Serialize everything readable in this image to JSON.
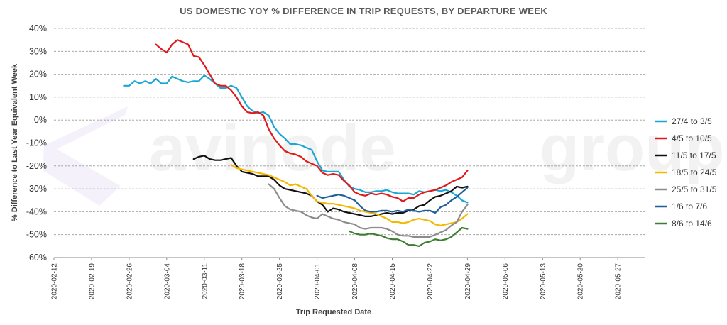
{
  "chart_data": {
    "type": "line",
    "title": "US DOMESTIC YOY % DIFFERENCE IN TRIP REQUESTS, BY DEPARTURE WEEK",
    "xlabel": "Trip Requested Date",
    "ylabel": "% Difference to Last Year Equivalent Week",
    "y_ticks": [
      "40%",
      "30%",
      "20%",
      "10%",
      "0%",
      "-10%",
      "-20%",
      "-30%",
      "-40%",
      "-50%",
      "-60%"
    ],
    "ylim": [
      -60,
      40
    ],
    "x_ticks": [
      "2020-02-12",
      "2020-02-19",
      "2020-02-26",
      "2020-03-04",
      "2020-03-11",
      "2020-03-18",
      "2020-03-25",
      "2020-04-01",
      "2020-04-08",
      "2020-04-15",
      "2020-04-22",
      "2020-04-29",
      "2020-05-06",
      "2020-05-13",
      "2020-05-20",
      "2020-05-27"
    ],
    "xlim": [
      "2020-02-12",
      "2020-06-01"
    ],
    "grid": "horizontal dashed",
    "legend_position": "right",
    "series": [
      {
        "name": "27/4 to 3/5",
        "color": "#1aa7d6",
        "x": [
          "2020-02-25",
          "2020-02-26",
          "2020-02-27",
          "2020-02-28",
          "2020-02-29",
          "2020-03-01",
          "2020-03-02",
          "2020-03-03",
          "2020-03-04",
          "2020-03-05",
          "2020-03-06",
          "2020-03-07",
          "2020-03-08",
          "2020-03-09",
          "2020-03-10",
          "2020-03-11",
          "2020-03-12",
          "2020-03-13",
          "2020-03-14",
          "2020-03-15",
          "2020-03-16",
          "2020-03-17",
          "2020-03-18",
          "2020-03-19",
          "2020-03-20",
          "2020-03-21",
          "2020-03-22",
          "2020-03-23",
          "2020-03-24",
          "2020-03-25",
          "2020-03-26",
          "2020-03-27",
          "2020-03-28",
          "2020-03-29",
          "2020-03-30",
          "2020-03-31",
          "2020-04-01",
          "2020-04-02",
          "2020-04-03",
          "2020-04-04",
          "2020-04-05",
          "2020-04-06",
          "2020-04-07",
          "2020-04-08",
          "2020-04-09",
          "2020-04-10",
          "2020-04-11",
          "2020-04-12",
          "2020-04-13",
          "2020-04-14",
          "2020-04-15",
          "2020-04-16",
          "2020-04-17",
          "2020-04-18",
          "2020-04-19",
          "2020-04-20",
          "2020-04-21",
          "2020-04-22",
          "2020-04-23",
          "2020-04-24",
          "2020-04-25",
          "2020-04-26",
          "2020-04-27",
          "2020-04-28",
          "2020-04-29"
        ],
        "y": [
          15,
          15,
          17,
          16,
          17,
          16,
          18,
          16,
          16,
          19,
          18,
          17,
          16.5,
          17,
          17,
          19.5,
          18,
          16,
          14,
          14,
          15,
          14,
          10,
          6,
          4,
          3,
          3.5,
          2,
          -3,
          -6,
          -8,
          -10.5,
          -10.5,
          -11,
          -12,
          -13,
          -18,
          -22,
          -22.5,
          -22.5,
          -22.5,
          -26,
          -29,
          -30,
          -30.5,
          -31.5,
          -31.5,
          -31,
          -31,
          -30.5,
          -31.5,
          -32,
          -32,
          -32,
          -32.5,
          -31,
          -31.5,
          -31,
          -30.5,
          -31,
          -30.5,
          -31.5,
          -33,
          -35,
          -36
        ]
      },
      {
        "name": "4/5 to 10/5",
        "color": "#e0191a",
        "x": [
          "2020-03-02",
          "2020-03-03",
          "2020-03-04",
          "2020-03-05",
          "2020-03-06",
          "2020-03-07",
          "2020-03-08",
          "2020-03-09",
          "2020-03-10",
          "2020-03-11",
          "2020-03-12",
          "2020-03-13",
          "2020-03-14",
          "2020-03-15",
          "2020-03-16",
          "2020-03-17",
          "2020-03-18",
          "2020-03-19",
          "2020-03-20",
          "2020-03-21",
          "2020-03-22",
          "2020-03-23",
          "2020-03-24",
          "2020-03-25",
          "2020-03-26",
          "2020-03-27",
          "2020-03-28",
          "2020-03-29",
          "2020-03-30",
          "2020-03-31",
          "2020-04-01",
          "2020-04-02",
          "2020-04-03",
          "2020-04-04",
          "2020-04-05",
          "2020-04-06",
          "2020-04-07",
          "2020-04-08",
          "2020-04-09",
          "2020-04-10",
          "2020-04-11",
          "2020-04-12",
          "2020-04-13",
          "2020-04-14",
          "2020-04-15",
          "2020-04-16",
          "2020-04-17",
          "2020-04-18",
          "2020-04-19",
          "2020-04-20",
          "2020-04-21",
          "2020-04-22",
          "2020-04-23",
          "2020-04-24",
          "2020-04-25",
          "2020-04-26",
          "2020-04-27",
          "2020-04-28",
          "2020-04-29"
        ],
        "y": [
          33,
          31,
          29.5,
          33,
          35,
          34,
          33,
          28,
          27.5,
          24,
          20,
          16,
          15,
          15,
          13,
          10,
          6,
          3.5,
          3,
          3.5,
          2,
          -4,
          -8,
          -11,
          -13.5,
          -14.5,
          -15,
          -16,
          -18,
          -19,
          -20,
          -23,
          -24,
          -23.5,
          -24,
          -26.5,
          -28.5,
          -31.5,
          -32.5,
          -33,
          -32,
          -32.5,
          -32,
          -32.5,
          -33.5,
          -34,
          -35.5,
          -34,
          -34,
          -32.5,
          -31.5,
          -31,
          -30.5,
          -29.5,
          -28.5,
          -27,
          -26,
          -25,
          -22
        ]
      },
      {
        "name": "11/5 to 17/5",
        "color": "#111111",
        "x": [
          "2020-03-09",
          "2020-03-10",
          "2020-03-11",
          "2020-03-12",
          "2020-03-13",
          "2020-03-14",
          "2020-03-15",
          "2020-03-16",
          "2020-03-17",
          "2020-03-18",
          "2020-03-19",
          "2020-03-20",
          "2020-03-21",
          "2020-03-22",
          "2020-03-23",
          "2020-03-24",
          "2020-03-25",
          "2020-03-26",
          "2020-03-27",
          "2020-03-28",
          "2020-03-29",
          "2020-03-30",
          "2020-03-31",
          "2020-04-01",
          "2020-04-02",
          "2020-04-03",
          "2020-04-04",
          "2020-04-05",
          "2020-04-06",
          "2020-04-07",
          "2020-04-08",
          "2020-04-09",
          "2020-04-10",
          "2020-04-11",
          "2020-04-12",
          "2020-04-13",
          "2020-04-14",
          "2020-04-15",
          "2020-04-16",
          "2020-04-17",
          "2020-04-18",
          "2020-04-19",
          "2020-04-20",
          "2020-04-21",
          "2020-04-22",
          "2020-04-23",
          "2020-04-24",
          "2020-04-25",
          "2020-04-26",
          "2020-04-27",
          "2020-04-28",
          "2020-04-29"
        ],
        "y": [
          -17,
          -16,
          -15.5,
          -17,
          -17.5,
          -17.5,
          -17,
          -16.5,
          -20,
          -22.5,
          -23,
          -23.5,
          -24.5,
          -24.5,
          -24.5,
          -26,
          -28.5,
          -30,
          -30.5,
          -31,
          -31.5,
          -32,
          -33,
          -35.5,
          -37,
          -40,
          -38.5,
          -39,
          -40,
          -40.5,
          -41,
          -41.5,
          -42,
          -42,
          -41.5,
          -41,
          -40.5,
          -41,
          -40.5,
          -40.5,
          -39.5,
          -39,
          -37.5,
          -37,
          -35,
          -33.5,
          -33,
          -32,
          -31,
          -29,
          -29.5,
          -29
        ]
      },
      {
        "name": "18/5 to 24/5",
        "color": "#f5b800",
        "x": [
          "2020-03-16",
          "2020-03-17",
          "2020-03-18",
          "2020-03-19",
          "2020-03-20",
          "2020-03-21",
          "2020-03-22",
          "2020-03-23",
          "2020-03-24",
          "2020-03-25",
          "2020-03-26",
          "2020-03-27",
          "2020-03-28",
          "2020-03-29",
          "2020-03-30",
          "2020-03-31",
          "2020-04-01",
          "2020-04-02",
          "2020-04-03",
          "2020-04-04",
          "2020-04-05",
          "2020-04-06",
          "2020-04-07",
          "2020-04-08",
          "2020-04-09",
          "2020-04-10",
          "2020-04-11",
          "2020-04-12",
          "2020-04-13",
          "2020-04-14",
          "2020-04-15",
          "2020-04-16",
          "2020-04-17",
          "2020-04-18",
          "2020-04-19",
          "2020-04-20",
          "2020-04-21",
          "2020-04-22",
          "2020-04-23",
          "2020-04-24",
          "2020-04-25",
          "2020-04-26",
          "2020-04-27",
          "2020-04-28",
          "2020-04-29"
        ],
        "y": [
          -19.5,
          -21,
          -21.5,
          -22,
          -22.5,
          -23,
          -23.5,
          -24,
          -25,
          -26,
          -27,
          -28.5,
          -28,
          -29,
          -30,
          -33,
          -35.5,
          -36,
          -36.5,
          -36.5,
          -37,
          -37.5,
          -38,
          -38.5,
          -39.5,
          -40,
          -40.5,
          -41,
          -42,
          -43,
          -44.5,
          -44.5,
          -45,
          -44.5,
          -43.5,
          -43,
          -43.5,
          -44,
          -45.5,
          -46,
          -45.5,
          -45,
          -44.5,
          -43,
          -41
        ]
      },
      {
        "name": "25/5 to 31/5",
        "color": "#8c8c8c",
        "x": [
          "2020-03-23",
          "2020-03-24",
          "2020-03-25",
          "2020-03-26",
          "2020-03-27",
          "2020-03-28",
          "2020-03-29",
          "2020-03-30",
          "2020-03-31",
          "2020-04-01",
          "2020-04-02",
          "2020-04-03",
          "2020-04-04",
          "2020-04-05",
          "2020-04-06",
          "2020-04-07",
          "2020-04-08",
          "2020-04-09",
          "2020-04-10",
          "2020-04-11",
          "2020-04-12",
          "2020-04-13",
          "2020-04-14",
          "2020-04-15",
          "2020-04-16",
          "2020-04-17",
          "2020-04-18",
          "2020-04-19",
          "2020-04-20",
          "2020-04-21",
          "2020-04-22",
          "2020-04-23",
          "2020-04-24",
          "2020-04-25",
          "2020-04-26",
          "2020-04-27",
          "2020-04-28",
          "2020-04-29"
        ],
        "y": [
          -28,
          -30,
          -34,
          -37.5,
          -39,
          -39.5,
          -40,
          -41.5,
          -42.5,
          -43,
          -41,
          -42,
          -43,
          -43.5,
          -44.5,
          -45,
          -45.5,
          -47,
          -47.5,
          -47,
          -47,
          -47,
          -47.5,
          -48.5,
          -50,
          -50.5,
          -50.5,
          -51,
          -51,
          -51,
          -51,
          -50,
          -49,
          -48,
          -46,
          -44.5,
          -40,
          -37
        ]
      },
      {
        "name": "1/6 to 7/6",
        "color": "#1f5f99",
        "x": [
          "2020-04-01",
          "2020-04-02",
          "2020-04-03",
          "2020-04-04",
          "2020-04-05",
          "2020-04-06",
          "2020-04-07",
          "2020-04-08",
          "2020-04-09",
          "2020-04-10",
          "2020-04-11",
          "2020-04-12",
          "2020-04-13",
          "2020-04-14",
          "2020-04-15",
          "2020-04-16",
          "2020-04-17",
          "2020-04-18",
          "2020-04-19",
          "2020-04-20",
          "2020-04-21",
          "2020-04-22",
          "2020-04-23",
          "2020-04-24",
          "2020-04-25",
          "2020-04-26",
          "2020-04-27",
          "2020-04-28",
          "2020-04-29"
        ],
        "y": [
          -33,
          -34,
          -33.5,
          -33,
          -32.5,
          -33,
          -34,
          -35,
          -37.5,
          -39.5,
          -40,
          -40,
          -39.5,
          -39.5,
          -40,
          -39.5,
          -40,
          -39,
          -39.5,
          -40,
          -39.5,
          -39.5,
          -40.5,
          -38,
          -37,
          -35,
          -33.5,
          -31.5,
          -29.5
        ]
      },
      {
        "name": "8/6 to 14/6",
        "color": "#3e7d32",
        "x": [
          "2020-04-07",
          "2020-04-08",
          "2020-04-09",
          "2020-04-10",
          "2020-04-11",
          "2020-04-12",
          "2020-04-13",
          "2020-04-14",
          "2020-04-15",
          "2020-04-16",
          "2020-04-17",
          "2020-04-18",
          "2020-04-19",
          "2020-04-20",
          "2020-04-21",
          "2020-04-22",
          "2020-04-23",
          "2020-04-24",
          "2020-04-25",
          "2020-04-26",
          "2020-04-27",
          "2020-04-28",
          "2020-04-29"
        ],
        "y": [
          -48.5,
          -49.5,
          -50,
          -50,
          -49.5,
          -50,
          -50.5,
          -51.5,
          -52,
          -52,
          -53,
          -54.5,
          -54.5,
          -55,
          -53.5,
          -53,
          -52,
          -52.5,
          -52,
          -51,
          -49,
          -47,
          -47.5
        ]
      }
    ]
  }
}
